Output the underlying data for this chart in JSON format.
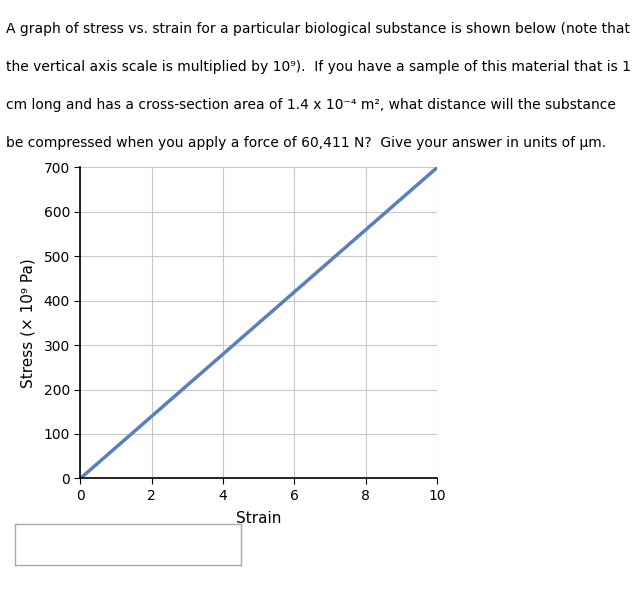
{
  "title_lines": [
    "A graph of stress vs. strain for a particular biological substance is shown below (note that",
    "the vertical axis scale is multiplied by 10⁹).  If you have a sample of this material that is 1",
    "cm long and has a cross-section area of 1.4 x 10⁻⁴ m², what distance will the substance",
    "be compressed when you apply a force of 60,411 N?  Give your answer in units of μm."
  ],
  "x_data": [
    0,
    10
  ],
  "y_data": [
    0,
    700
  ],
  "xlabel": "Strain",
  "ylabel": "Stress (× 10⁹ Pa)",
  "xlim": [
    0,
    10
  ],
  "ylim": [
    0,
    700
  ],
  "xticks": [
    0,
    2,
    4,
    6,
    8,
    10
  ],
  "yticks": [
    0,
    100,
    200,
    300,
    400,
    500,
    600,
    700
  ],
  "line_color": "#5b7fbe",
  "line_width": 2.5,
  "grid_color": "#c8c8c8",
  "bg_color": "#ffffff",
  "text_color": "#000000",
  "title_fontsize": 10.0,
  "axis_label_fontsize": 11,
  "tick_fontsize": 10
}
